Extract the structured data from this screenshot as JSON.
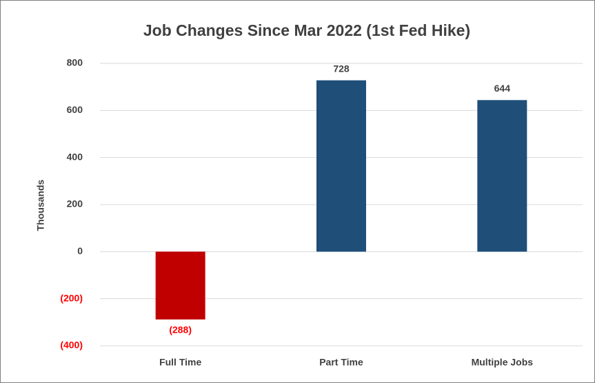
{
  "chart_data": {
    "type": "bar",
    "title": "Job Changes Since Mar 2022 (1st Fed Hike)",
    "y_label": "Thousands",
    "categories": [
      "Full Time",
      "Part Time",
      "Multiple Jobs"
    ],
    "values": [
      -288,
      728,
      644
    ],
    "value_labels": [
      "(288)",
      "728",
      "644"
    ],
    "colors": [
      "#c00000",
      "#1f4e79",
      "#1f4e79"
    ],
    "negative_label_color": "#ff0000",
    "ylim": [
      -400,
      800
    ],
    "yticks": [
      {
        "value": -400,
        "label": "(400)"
      },
      {
        "value": -200,
        "label": "(200)"
      },
      0,
      200,
      400,
      600,
      800
    ],
    "grid": true
  }
}
